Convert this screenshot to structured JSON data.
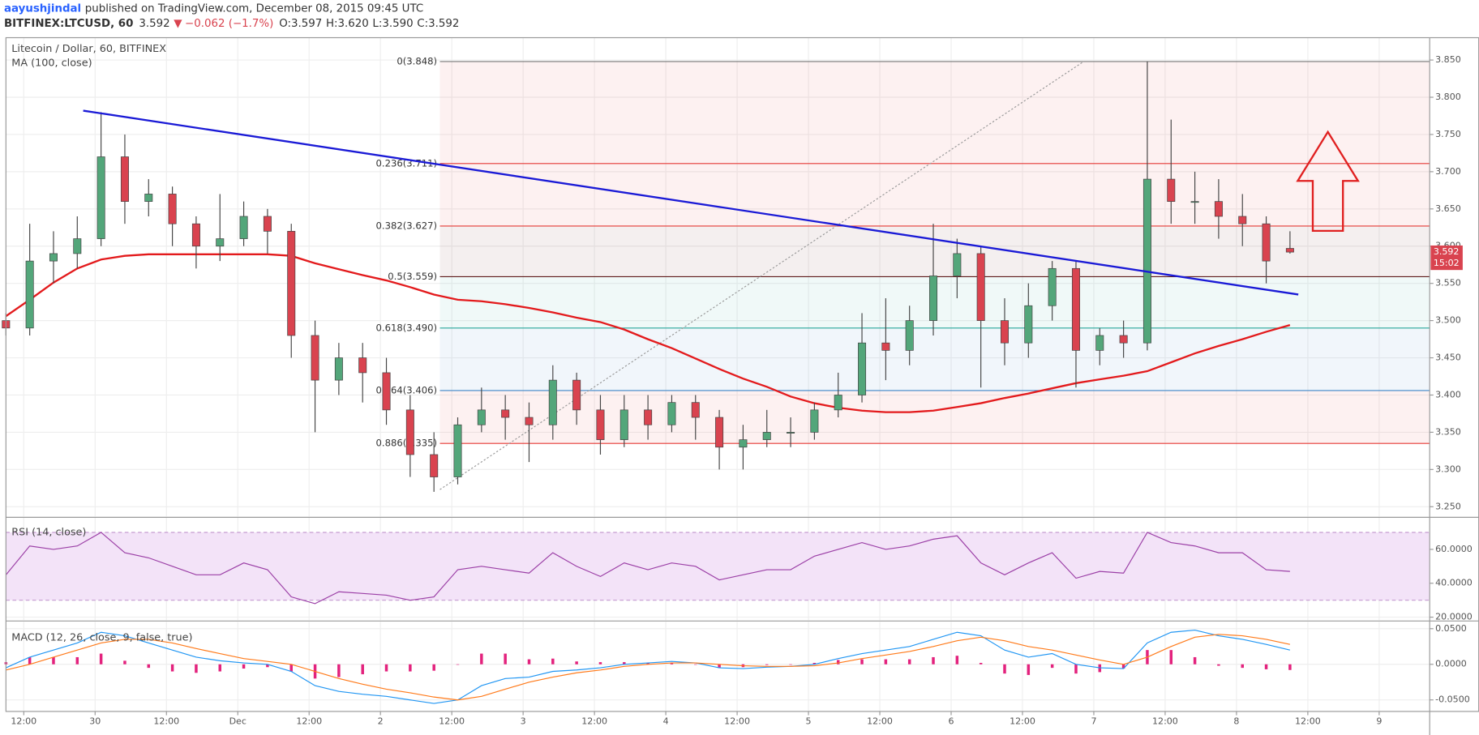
{
  "header": {
    "author": "aayushjindal",
    "published": "published on TradingView.com, December 08, 2015 09:45 UTC",
    "symbol": "BITFINEX:LTCUSD, 60",
    "last": "3.592",
    "arrow": "▼",
    "change": "−0.062 (−1.7%)",
    "open": "O:3.597",
    "high": "H:3.620",
    "low": "L:3.590",
    "close": "C:3.592"
  },
  "chart_data": [
    {
      "type": "candlestick",
      "title": "Litecoin / Dollar, 60, BITFINEX",
      "indicator": "MA (100, close)",
      "x": [
        9,
        13,
        17,
        21,
        25,
        29,
        33,
        37,
        41,
        45,
        49,
        53,
        57,
        61,
        65,
        69,
        73,
        77,
        81,
        85,
        89,
        93,
        97,
        101,
        105,
        109,
        113,
        117,
        121,
        125,
        129,
        133,
        137,
        141,
        145,
        149,
        153,
        157,
        161,
        165,
        169,
        173,
        177,
        181,
        185,
        189,
        193,
        197,
        201,
        205,
        209,
        213,
        217,
        221,
        225
      ],
      "open": [
        3.5,
        3.49,
        3.58,
        3.59,
        3.61,
        3.72,
        3.66,
        3.67,
        3.63,
        3.6,
        3.61,
        3.64,
        3.62,
        3.48,
        3.42,
        3.45,
        3.43,
        3.38,
        3.32,
        3.29,
        3.36,
        3.38,
        3.37,
        3.36,
        3.42,
        3.38,
        3.34,
        3.38,
        3.36,
        3.39,
        3.37,
        3.33,
        3.34,
        3.35,
        3.35,
        3.38,
        3.4,
        3.47,
        3.46,
        3.5,
        3.56,
        3.59,
        3.5,
        3.47,
        3.52,
        3.57,
        3.46,
        3.48,
        3.47,
        3.69,
        3.66,
        3.66,
        3.64,
        3.63,
        3.597
      ],
      "high": [
        3.51,
        3.63,
        3.62,
        3.64,
        3.78,
        3.75,
        3.69,
        3.68,
        3.64,
        3.67,
        3.66,
        3.65,
        3.63,
        3.5,
        3.47,
        3.47,
        3.45,
        3.4,
        3.35,
        3.37,
        3.41,
        3.4,
        3.39,
        3.44,
        3.43,
        3.4,
        3.4,
        3.4,
        3.4,
        3.4,
        3.38,
        3.36,
        3.38,
        3.37,
        3.39,
        3.43,
        3.51,
        3.53,
        3.52,
        3.63,
        3.61,
        3.6,
        3.53,
        3.55,
        3.58,
        3.58,
        3.49,
        3.5,
        3.848,
        3.77,
        3.7,
        3.69,
        3.67,
        3.64,
        3.62
      ],
      "low": [
        3.48,
        3.48,
        3.55,
        3.57,
        3.6,
        3.63,
        3.64,
        3.6,
        3.57,
        3.58,
        3.6,
        3.59,
        3.45,
        3.35,
        3.4,
        3.39,
        3.36,
        3.29,
        3.27,
        3.28,
        3.35,
        3.34,
        3.31,
        3.34,
        3.36,
        3.32,
        3.33,
        3.34,
        3.35,
        3.34,
        3.3,
        3.3,
        3.33,
        3.33,
        3.34,
        3.37,
        3.39,
        3.42,
        3.44,
        3.48,
        3.53,
        3.41,
        3.44,
        3.45,
        3.5,
        3.41,
        3.44,
        3.45,
        3.46,
        3.63,
        3.63,
        3.61,
        3.6,
        3.55,
        3.59
      ],
      "close": [
        3.49,
        3.58,
        3.59,
        3.61,
        3.72,
        3.66,
        3.67,
        3.63,
        3.6,
        3.61,
        3.64,
        3.62,
        3.48,
        3.42,
        3.45,
        3.43,
        3.38,
        3.32,
        3.29,
        3.36,
        3.38,
        3.37,
        3.36,
        3.42,
        3.38,
        3.34,
        3.38,
        3.36,
        3.39,
        3.37,
        3.33,
        3.34,
        3.35,
        3.35,
        3.38,
        3.4,
        3.47,
        3.46,
        3.5,
        3.56,
        3.59,
        3.5,
        3.47,
        3.52,
        3.57,
        3.46,
        3.48,
        3.47,
        3.69,
        3.66,
        3.66,
        3.64,
        3.63,
        3.58,
        3.592
      ],
      "up_color": "#53a67a",
      "down_color": "#d9434f",
      "ma": {
        "color": "#e31a1c",
        "values": [
          3.506,
          3.528,
          3.551,
          3.57,
          3.582,
          3.587,
          3.589,
          3.589,
          3.589,
          3.589,
          3.589,
          3.589,
          3.587,
          3.577,
          3.569,
          3.561,
          3.554,
          3.545,
          3.535,
          3.528,
          3.526,
          3.522,
          3.517,
          3.511,
          3.504,
          3.498,
          3.488,
          3.475,
          3.463,
          3.449,
          3.435,
          3.422,
          3.411,
          3.398,
          3.389,
          3.383,
          3.379,
          3.377,
          3.377,
          3.379,
          3.384,
          3.389,
          3.396,
          3.402,
          3.409,
          3.416,
          3.421,
          3.426,
          3.432,
          3.444,
          3.456,
          3.466,
          3.475,
          3.485,
          3.494
        ]
      },
      "xlim": [
        9,
        248.5
      ],
      "xticks": [
        {
          "value": 12,
          "label": "12:00"
        },
        {
          "value": 24,
          "label": "30"
        },
        {
          "value": 36,
          "label": "12:00"
        },
        {
          "value": 48,
          "label": "Dec"
        },
        {
          "value": 60,
          "label": "12:00"
        },
        {
          "value": 72,
          "label": "2"
        },
        {
          "value": 84,
          "label": "12:00"
        },
        {
          "value": 96,
          "label": "3"
        },
        {
          "value": 108,
          "label": "12:00"
        },
        {
          "value": 120,
          "label": "4"
        },
        {
          "value": 132,
          "label": "12:00"
        },
        {
          "value": 144,
          "label": "5"
        },
        {
          "value": 156,
          "label": "12:00"
        },
        {
          "value": 168,
          "label": "6"
        },
        {
          "value": 180,
          "label": "12:00"
        },
        {
          "value": 192,
          "label": "7"
        },
        {
          "value": 204,
          "label": "12:00"
        },
        {
          "value": 216,
          "label": "8"
        },
        {
          "value": 228,
          "label": "12:00"
        },
        {
          "value": 240,
          "label": "9"
        }
      ],
      "ylim": [
        3.237,
        3.88
      ],
      "yticks": [
        {
          "value": 3.25,
          "label": "3.250"
        },
        {
          "value": 3.3,
          "label": "3.300"
        },
        {
          "value": 3.35,
          "label": "3.350"
        },
        {
          "value": 3.4,
          "label": "3.400"
        },
        {
          "value": 3.45,
          "label": "3.450"
        },
        {
          "value": 3.5,
          "label": "3.500"
        },
        {
          "value": 3.55,
          "label": "3.550"
        },
        {
          "value": 3.6,
          "label": "3.600"
        },
        {
          "value": 3.65,
          "label": "3.650"
        },
        {
          "value": 3.7,
          "label": "3.700"
        },
        {
          "value": 3.75,
          "label": "3.750"
        },
        {
          "value": 3.8,
          "label": "3.800"
        },
        {
          "value": 3.85,
          "label": "3.850"
        }
      ],
      "grid": true,
      "fib_line": {
        "x": [
          82,
          190.3
        ],
        "values": [
          3.273,
          3.848
        ],
        "color": "#999999"
      },
      "fib": [
        {
          "label": "0(3.848)",
          "value": 3.848,
          "color": "#787878"
        },
        {
          "label": "0.236(3.711)",
          "value": 3.711,
          "color": "#e53935"
        },
        {
          "label": "0.382(3.627)",
          "value": 3.627,
          "color": "#e53935"
        },
        {
          "label": "0.5(3.559)",
          "value": 3.559,
          "color": "#5d1a1a"
        },
        {
          "label": "0.618(3.490)",
          "value": 3.49,
          "color": "#26a69a"
        },
        {
          "label": "0.764(3.406)",
          "value": 3.406,
          "color": "#3d85c6"
        },
        {
          "label": "0.886(3.335)",
          "value": 3.335,
          "color": "#e53935"
        }
      ],
      "trendline": {
        "x": [
          22,
          226.4
        ],
        "values": [
          3.782,
          3.535
        ],
        "color": "#1a1ad6"
      },
      "price_label": 3.592,
      "countdown": "15:02",
      "price_color": "#d9434f"
    },
    {
      "type": "line",
      "title": "RSI (14, close)",
      "x": [
        9,
        13,
        17,
        21,
        25,
        29,
        33,
        37,
        41,
        45,
        49,
        53,
        57,
        61,
        65,
        69,
        73,
        77,
        81,
        85,
        89,
        93,
        97,
        101,
        105,
        109,
        113,
        117,
        121,
        125,
        129,
        133,
        137,
        141,
        145,
        149,
        153,
        157,
        161,
        165,
        169,
        173,
        177,
        181,
        185,
        189,
        193,
        197,
        201,
        205,
        209,
        213,
        217,
        221,
        225
      ],
      "values": [
        45,
        62,
        60,
        62,
        70,
        58,
        55,
        50,
        45,
        45,
        52,
        48,
        32,
        28,
        35,
        34,
        33,
        30,
        32,
        48,
        50,
        48,
        46,
        58,
        50,
        44,
        52,
        48,
        52,
        50,
        42,
        45,
        48,
        48,
        56,
        60,
        64,
        60,
        62,
        66,
        68,
        52,
        45,
        52,
        58,
        43,
        47,
        46,
        70,
        64,
        62,
        58,
        58,
        48,
        47
      ],
      "color": "#9b3fa6",
      "band": [
        30,
        70
      ],
      "band_color": "#f3e3f8",
      "xlim": [
        9,
        248.5
      ],
      "ylim": [
        18.3,
        78.9
      ],
      "yticks": [
        {
          "value": 60,
          "label": "60.0000"
        },
        {
          "value": 40,
          "label": "40.0000"
        },
        {
          "value": 20,
          "label": "20.0000"
        }
      ]
    },
    {
      "type": "macd",
      "title": "MACD (12, 26, close, 9, false, true)",
      "x": [
        9,
        13,
        17,
        21,
        25,
        29,
        33,
        37,
        41,
        45,
        49,
        53,
        57,
        61,
        65,
        69,
        73,
        77,
        81,
        85,
        89,
        93,
        97,
        101,
        105,
        109,
        113,
        117,
        121,
        125,
        129,
        133,
        137,
        141,
        145,
        149,
        153,
        157,
        161,
        165,
        169,
        173,
        177,
        181,
        185,
        189,
        193,
        197,
        201,
        205,
        209,
        213,
        217,
        221,
        225
      ],
      "macd": {
        "color": "#2196f3",
        "values": [
          -0.005,
          0.01,
          0.02,
          0.03,
          0.045,
          0.04,
          0.03,
          0.02,
          0.01,
          0.005,
          0.002,
          0.0,
          -0.01,
          -0.03,
          -0.038,
          -0.042,
          -0.045,
          -0.05,
          -0.055,
          -0.05,
          -0.03,
          -0.02,
          -0.018,
          -0.01,
          -0.008,
          -0.005,
          0.0,
          0.002,
          0.004,
          0.002,
          -0.005,
          -0.006,
          -0.004,
          -0.003,
          0.0,
          0.008,
          0.015,
          0.02,
          0.025,
          0.035,
          0.045,
          0.04,
          0.02,
          0.01,
          0.015,
          0.0,
          -0.005,
          -0.006,
          0.03,
          0.045,
          0.048,
          0.04,
          0.035,
          0.028,
          0.02
        ]
      },
      "signal": {
        "color": "#ff7a1a",
        "values": [
          -0.008,
          0.0,
          0.01,
          0.02,
          0.03,
          0.035,
          0.035,
          0.03,
          0.022,
          0.015,
          0.008,
          0.004,
          0.0,
          -0.01,
          -0.02,
          -0.028,
          -0.035,
          -0.04,
          -0.046,
          -0.05,
          -0.045,
          -0.035,
          -0.025,
          -0.018,
          -0.012,
          -0.008,
          -0.003,
          0.0,
          0.002,
          0.002,
          0.0,
          -0.002,
          -0.003,
          -0.003,
          -0.002,
          0.002,
          0.008,
          0.013,
          0.018,
          0.025,
          0.033,
          0.038,
          0.033,
          0.025,
          0.02,
          0.013,
          0.006,
          0.0,
          0.01,
          0.025,
          0.038,
          0.042,
          0.04,
          0.035,
          0.028
        ]
      },
      "histogram": {
        "color": "#e3227d",
        "values": [
          0.003,
          0.01,
          0.01,
          0.01,
          0.015,
          0.005,
          -0.005,
          -0.01,
          -0.012,
          -0.01,
          -0.006,
          -0.004,
          -0.01,
          -0.02,
          -0.018,
          -0.014,
          -0.01,
          -0.01,
          -0.009,
          0.0,
          0.015,
          0.015,
          0.007,
          0.008,
          0.004,
          0.003,
          0.003,
          0.002,
          0.002,
          0.0,
          -0.005,
          -0.004,
          -0.001,
          0.0,
          0.002,
          0.006,
          0.007,
          0.007,
          0.007,
          0.01,
          0.012,
          0.002,
          -0.013,
          -0.015,
          -0.005,
          -0.013,
          -0.011,
          -0.006,
          0.02,
          0.02,
          0.01,
          -0.002,
          -0.005,
          -0.007,
          -0.008
        ]
      },
      "xlim": [
        9,
        248.5
      ],
      "ylim": [
        -0.0662,
        0.0595
      ],
      "yticks": [
        {
          "value": 0.05,
          "label": "0.0500"
        },
        {
          "value": 0,
          "label": "0.0000"
        },
        {
          "value": -0.05,
          "label": "-0.0500"
        }
      ]
    }
  ]
}
